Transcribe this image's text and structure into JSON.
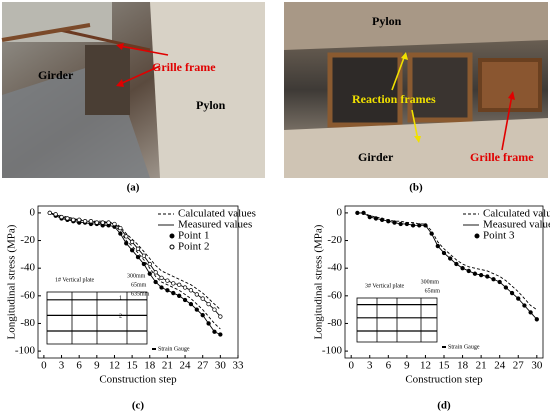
{
  "photos": [
    {
      "label": "(a)",
      "annotations": [
        "Girder",
        "Grille frame",
        "Pylon"
      ]
    },
    {
      "label": "(b)",
      "annotations": [
        "Pylon",
        "Reaction frames",
        "Girder",
        "Grille frame"
      ]
    }
  ],
  "chart_data": [
    {
      "type": "line",
      "panel": "(c)",
      "x_label": "Construction step",
      "y_label": "Longitudinal stress (MPa)",
      "legend": [
        "Calculated values",
        "Measured values"
      ],
      "x": [
        1,
        2,
        3,
        4,
        5,
        6,
        7,
        8,
        9,
        10,
        11,
        12,
        13,
        14,
        15,
        16,
        17,
        18,
        19,
        20,
        21,
        22,
        23,
        24,
        25,
        26,
        27,
        28,
        29,
        30
      ],
      "series": [
        {
          "name": "Point 1",
          "marker": "filled",
          "color": "#000000",
          "values": [
            0,
            -2,
            -4,
            -5,
            -6,
            -7,
            -7,
            -8,
            -8,
            -9,
            -9,
            -10,
            -15,
            -22,
            -27,
            -32,
            -37,
            -44,
            -50,
            -54,
            -56,
            -58,
            -60,
            -63,
            -66,
            -70,
            -74,
            -80,
            -86,
            -88
          ],
          "calculated": [
            0,
            -2,
            -3,
            -4,
            -5,
            -6,
            -6,
            -7,
            -7,
            -8,
            -8,
            -9,
            -13,
            -20,
            -24,
            -29,
            -34,
            -40,
            -46,
            -50,
            -52,
            -54,
            -56,
            -59,
            -62,
            -66,
            -70,
            -75,
            -80,
            -84
          ]
        },
        {
          "name": "Point 2",
          "marker": "open",
          "color": "#000000",
          "values": [
            0,
            -1,
            -3,
            -4,
            -5,
            -5,
            -6,
            -6,
            -7,
            -7,
            -7,
            -8,
            -11,
            -17,
            -21,
            -26,
            -31,
            -37,
            -43,
            -47,
            -49,
            -51,
            -52,
            -54,
            -56,
            -59,
            -62,
            -66,
            -70,
            -75
          ],
          "calculated": [
            0,
            -1,
            -2,
            -3,
            -4,
            -5,
            -5,
            -6,
            -6,
            -6,
            -7,
            -7,
            -10,
            -15,
            -19,
            -23,
            -28,
            -33,
            -38,
            -42,
            -44,
            -46,
            -48,
            -50,
            -52,
            -55,
            -58,
            -62,
            -66,
            -70
          ]
        }
      ],
      "xlim": [
        -1,
        33
      ],
      "xticks": [
        0,
        3,
        6,
        9,
        12,
        15,
        18,
        21,
        24,
        27,
        30,
        33
      ],
      "ylim": [
        -105,
        5
      ],
      "yticks": [
        0,
        -20,
        -40,
        -60,
        -80,
        -100
      ],
      "inset": {
        "title": "1# Vertical plate",
        "dims": [
          "300mm",
          "65mm",
          "635mm"
        ],
        "points": [
          "1",
          "2"
        ],
        "gauge": "Strain Gauge"
      }
    },
    {
      "type": "line",
      "panel": "(d)",
      "x_label": "Construction step",
      "y_label": "Longitudinal stress (MPa)",
      "legend": [
        "Calculated values",
        "Measured values"
      ],
      "x": [
        1,
        2,
        3,
        4,
        5,
        6,
        7,
        8,
        9,
        10,
        11,
        12,
        13,
        14,
        15,
        16,
        17,
        18,
        19,
        20,
        21,
        22,
        23,
        24,
        25,
        26,
        27,
        28,
        29,
        30
      ],
      "series": [
        {
          "name": "Point 3",
          "marker": "filled",
          "color": "#000000",
          "values": [
            0,
            0,
            -3,
            -4,
            -5,
            -6,
            -7,
            -8,
            -8,
            -9,
            -9,
            -9,
            -15,
            -24,
            -29,
            -33,
            -37,
            -40,
            -42,
            -44,
            -45,
            -46,
            -48,
            -50,
            -54,
            -58,
            -62,
            -67,
            -72,
            -77
          ],
          "calculated": [
            0,
            0,
            -2,
            -3,
            -4,
            -5,
            -6,
            -6,
            -7,
            -7,
            -8,
            -8,
            -13,
            -21,
            -26,
            -30,
            -34,
            -37,
            -39,
            -40,
            -41,
            -42,
            -44,
            -46,
            -49,
            -53,
            -57,
            -62,
            -67,
            -70
          ]
        }
      ],
      "xlim": [
        -1,
        31
      ],
      "xticks": [
        0,
        3,
        6,
        9,
        12,
        15,
        18,
        21,
        24,
        27,
        30
      ],
      "ylim": [
        -105,
        5
      ],
      "yticks": [
        0,
        -20,
        -40,
        -60,
        -80,
        -100
      ],
      "inset": {
        "title": "3# Vertical plate",
        "dims": [
          "300mm",
          "65mm"
        ],
        "points": [],
        "gauge": "Strain Gauge"
      }
    }
  ]
}
